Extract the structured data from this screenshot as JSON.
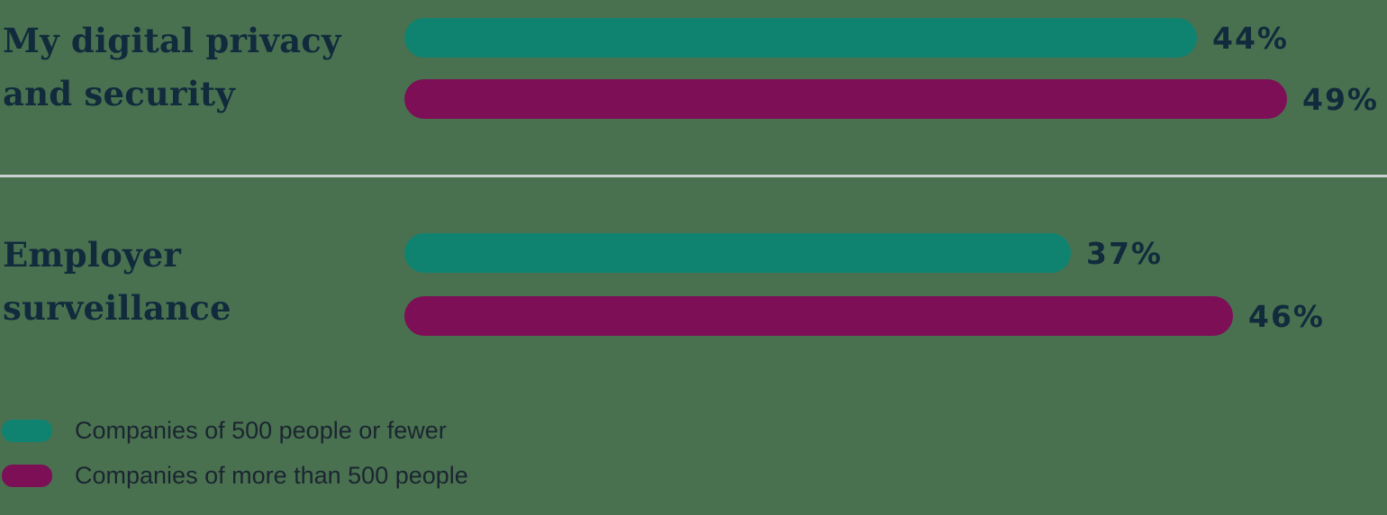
{
  "chart_data": {
    "type": "bar",
    "orientation": "horizontal",
    "unit": "%",
    "xlim": [
      0,
      100
    ],
    "grid": false,
    "legend_position": "bottom-left",
    "categories": [
      "My digital privacy and security",
      "Employer surveillance"
    ],
    "series": [
      {
        "name": "Companies of 500 people or fewer",
        "color": "#108270",
        "values": [
          44,
          37
        ]
      },
      {
        "name": "Companies of more than 500 people",
        "color": "#7D0F57",
        "values": [
          49,
          46
        ]
      }
    ],
    "groups": [
      {
        "label_lines": [
          "My digital privacy",
          "and security"
        ],
        "bars": [
          {
            "series": "Companies of 500 people or fewer",
            "value": 44,
            "label": "44%"
          },
          {
            "series": "Companies of more than 500 people",
            "value": 49,
            "label": "49%"
          }
        ]
      },
      {
        "label_lines": [
          "Employer",
          "surveillance"
        ],
        "bars": [
          {
            "series": "Companies of 500 people or fewer",
            "value": 37,
            "label": "37%"
          },
          {
            "series": "Companies of more than 500 people",
            "value": 46,
            "label": "46%"
          }
        ]
      }
    ],
    "legend": [
      {
        "label": "Companies of 500 people or fewer",
        "color": "#108270"
      },
      {
        "label": "Companies of more than 500 people",
        "color": "#7D0F57"
      }
    ]
  },
  "colors": {
    "background": "#497150",
    "teal": "#108270",
    "magenta": "#7D0F57",
    "text_navy": "#112B3C",
    "divider": "#CBCFCE"
  }
}
